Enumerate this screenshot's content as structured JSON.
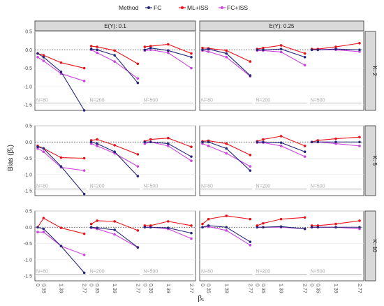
{
  "legend": {
    "title": "Method",
    "items": [
      {
        "name": "FC",
        "color": "#26267a"
      },
      {
        "name": "ML+ISS",
        "color": "#e8141c"
      },
      {
        "name": "FC+ISS",
        "color": "#cc44dd"
      }
    ]
  },
  "axis_labels": {
    "y": "Bias (β̂₁)",
    "x": "β₁"
  },
  "chart_data": {
    "type": "line",
    "col_facets": [
      "E(Y): 0.1",
      "E(Y): 0.25"
    ],
    "row_facets": [
      "K: 2",
      "K: 5",
      "K: 10"
    ],
    "n_labels": [
      "N=80",
      "N=200",
      "N=500"
    ],
    "x_ticks": [
      "0",
      "0.35",
      "1.39",
      "2.77"
    ],
    "x_values": [
      0,
      0.35,
      1.39,
      2.77
    ],
    "y_ticks": [
      0.5,
      0.0,
      -0.5,
      -1.0,
      -1.5
    ],
    "ylim": [
      -1.65,
      0.5
    ],
    "colors": {
      "FC": "#26267a",
      "ML+ISS": "#e8141c",
      "FC+ISS": "#cc44dd",
      "overlap_FC_ML": "#8b3a14"
    },
    "panels": [
      {
        "col": 0,
        "row": 0,
        "series": {
          "FC": [
            [
              -0.1,
              -0.2,
              -0.6,
              -1.65
            ],
            [
              0.02,
              0.0,
              -0.15,
              -0.9
            ],
            [
              0.0,
              0.05,
              -0.02,
              -0.2
            ]
          ],
          "ML+ISS": [
            [
              -0.1,
              -0.15,
              -0.35,
              -0.5
            ],
            [
              0.1,
              0.08,
              -0.02,
              -0.38
            ],
            [
              0.08,
              0.1,
              0.15,
              -0.1
            ]
          ],
          "FC+ISS": [
            [
              -0.2,
              -0.3,
              -0.65,
              -0.85
            ],
            [
              0.0,
              -0.08,
              -0.32,
              -0.78
            ],
            [
              -0.02,
              0.0,
              -0.08,
              -0.5
            ]
          ]
        }
      },
      {
        "col": 1,
        "row": 0,
        "series": {
          "FC": [
            [
              0.0,
              0.02,
              -0.1,
              -0.7
            ],
            [
              0.0,
              0.0,
              0.02,
              -0.2
            ],
            [
              0.0,
              0.0,
              0.02,
              0.0
            ]
          ],
          "ML+ISS": [
            [
              0.05,
              0.04,
              -0.02,
              -0.32
            ],
            [
              0.02,
              0.05,
              0.12,
              -0.1
            ],
            [
              0.02,
              0.02,
              0.08,
              0.18
            ]
          ],
          "FC+ISS": [
            [
              -0.02,
              -0.05,
              -0.2,
              -0.72
            ],
            [
              -0.02,
              -0.02,
              -0.06,
              -0.42
            ],
            [
              0.0,
              0.0,
              0.0,
              -0.05
            ]
          ]
        }
      },
      {
        "col": 0,
        "row": 1,
        "series": {
          "FC": [
            [
              -0.15,
              -0.2,
              -0.75,
              -1.6
            ],
            [
              0.0,
              -0.05,
              -0.3,
              -1.05
            ],
            [
              0.0,
              0.0,
              -0.05,
              -0.45
            ]
          ],
          "ML+ISS": [
            [
              -0.12,
              -0.2,
              -0.48,
              -0.5
            ],
            [
              0.05,
              0.08,
              -0.1,
              -0.38
            ],
            [
              0.02,
              0.08,
              0.12,
              -0.15
            ]
          ],
          "FC+ISS": [
            [
              -0.2,
              -0.3,
              -0.78,
              -0.88
            ],
            [
              -0.05,
              -0.12,
              -0.35,
              -0.75
            ],
            [
              -0.05,
              0.0,
              -0.12,
              -0.58
            ]
          ]
        }
      },
      {
        "col": 1,
        "row": 1,
        "series": {
          "FC": [
            [
              0.0,
              0.0,
              -0.2,
              -0.88
            ],
            [
              0.0,
              0.0,
              -0.02,
              -0.3
            ],
            [
              0.0,
              0.0,
              0.0,
              0.0
            ]
          ],
          "ML+ISS": [
            [
              0.02,
              0.04,
              -0.05,
              -0.4
            ],
            [
              0.02,
              0.08,
              0.18,
              -0.12
            ],
            [
              0.0,
              0.05,
              0.1,
              0.15
            ]
          ],
          "FC+ISS": [
            [
              -0.05,
              -0.12,
              -0.35,
              -0.75
            ],
            [
              -0.02,
              -0.02,
              -0.12,
              -0.45
            ],
            [
              0.0,
              0.0,
              -0.05,
              -0.12
            ]
          ]
        }
      },
      {
        "col": 0,
        "row": 2,
        "series": {
          "FC": [
            [
              0.0,
              -0.05,
              -0.58,
              -1.4
            ],
            [
              0.0,
              -0.02,
              -0.08,
              -0.62
            ],
            [
              0.0,
              0.0,
              -0.02,
              -0.18
            ]
          ],
          "ML+ISS": [
            [
              0.0,
              0.28,
              -0.02,
              -0.2
            ],
            [
              0.1,
              0.2,
              0.18,
              -0.1
            ],
            [
              0.05,
              0.05,
              0.18,
              0.05
            ]
          ],
          "FC+ISS": [
            [
              -0.15,
              -0.15,
              -0.58,
              -0.85
            ],
            [
              -0.02,
              -0.05,
              -0.22,
              -0.62
            ],
            [
              0.0,
              0.0,
              -0.05,
              -0.35
            ]
          ]
        }
      },
      {
        "col": 1,
        "row": 2,
        "series": {
          "FC": [
            [
              0.0,
              0.05,
              0.0,
              -0.45
            ],
            [
              0.0,
              0.0,
              0.02,
              -0.05
            ],
            [
              0.0,
              0.0,
              0.0,
              0.0
            ]
          ],
          "ML+ISS": [
            [
              0.1,
              0.25,
              0.35,
              0.25
            ],
            [
              0.05,
              0.12,
              0.25,
              0.3
            ],
            [
              0.05,
              0.05,
              0.1,
              0.2
            ]
          ],
          "FC+ISS": [
            [
              0.0,
              0.02,
              -0.1,
              -0.55
            ],
            [
              0.0,
              0.0,
              0.0,
              -0.05
            ],
            [
              0.0,
              0.0,
              0.0,
              -0.05
            ]
          ]
        }
      }
    ]
  }
}
